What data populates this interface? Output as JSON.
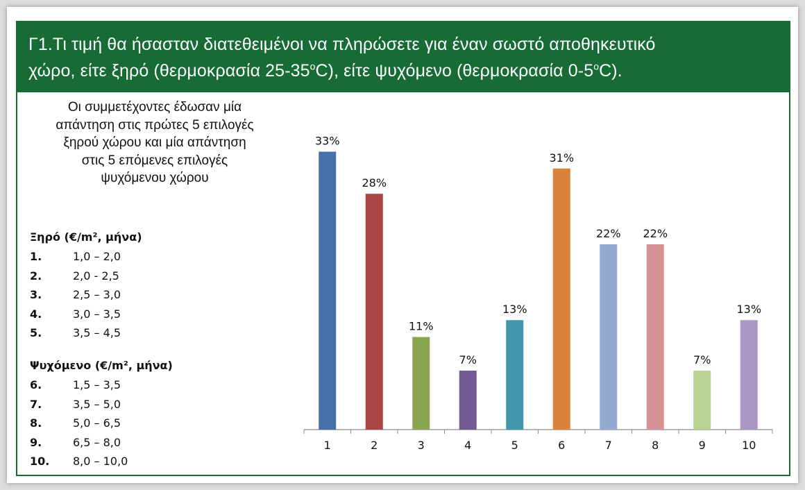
{
  "header": {
    "line1": "Γ1.Τι τιμή θα ήσασταν διατεθειμένοι να πληρώσετε για έναν σωστό αποθηκευτικό",
    "line2_a": "χώρο, είτε ξηρό (θερμοκρασία 25-35",
    "degree_mark": "ο",
    "line2_b": "C), είτε ψυχόμενο (θερμοκρασία 0-5",
    "line2_c": "C)."
  },
  "description": [
    "Οι συμμετέχοντες έδωσαν μία",
    "απάντηση στις πρώτες 5 επιλογές",
    "ξηρού χώρου και μία απάντηση",
    "στις 5 επόμενες επιλογές",
    "ψυχόμενου χώρου"
  ],
  "legend": {
    "dry_title": "Ξηρό (€/m², μήνα)",
    "dry_items": [
      {
        "num": "1.",
        "range": " 1,0 – 2,0"
      },
      {
        "num": "2.",
        "range": "2,0 - 2,5"
      },
      {
        "num": "3.",
        "range": "2,5 – 3,0"
      },
      {
        "num": "4.",
        "range": "3,0 – 3,5"
      },
      {
        "num": "5.",
        "range": "3,5 – 4,5"
      }
    ],
    "cold_title": "Ψυχόμενο (€/m², μήνα)",
    "cold_items": [
      {
        "num": "6.",
        "range": "1,5 – 3,5"
      },
      {
        "num": "7.",
        "range": "3,5 – 5,0"
      },
      {
        "num": "8.",
        "range": "5,0 – 6,5"
      },
      {
        "num": "9.",
        "range": "6,5 – 8,0"
      },
      {
        "num": "10.",
        "range": "8,0 – 10,0"
      }
    ]
  },
  "chart_data": {
    "type": "bar",
    "categories": [
      "1",
      "2",
      "3",
      "4",
      "5",
      "6",
      "7",
      "8",
      "9",
      "10"
    ],
    "values": [
      33,
      28,
      11,
      7,
      13,
      31,
      22,
      22,
      7,
      13
    ],
    "data_labels": [
      "33%",
      "28%",
      "11%",
      "7%",
      "13%",
      "31%",
      "22%",
      "22%",
      "7%",
      "13%"
    ],
    "colors": [
      "#4670a8",
      "#aa4644",
      "#8aa64e",
      "#725a93",
      "#4197ae",
      "#da8239",
      "#93a9d2",
      "#d49392",
      "#b9d393",
      "#a897c2"
    ],
    "ylim": [
      0,
      37
    ],
    "grid": false,
    "title": "",
    "xlabel": "",
    "ylabel": ""
  },
  "colors": {
    "header_bg": "#176b35",
    "border": "#176b35"
  }
}
